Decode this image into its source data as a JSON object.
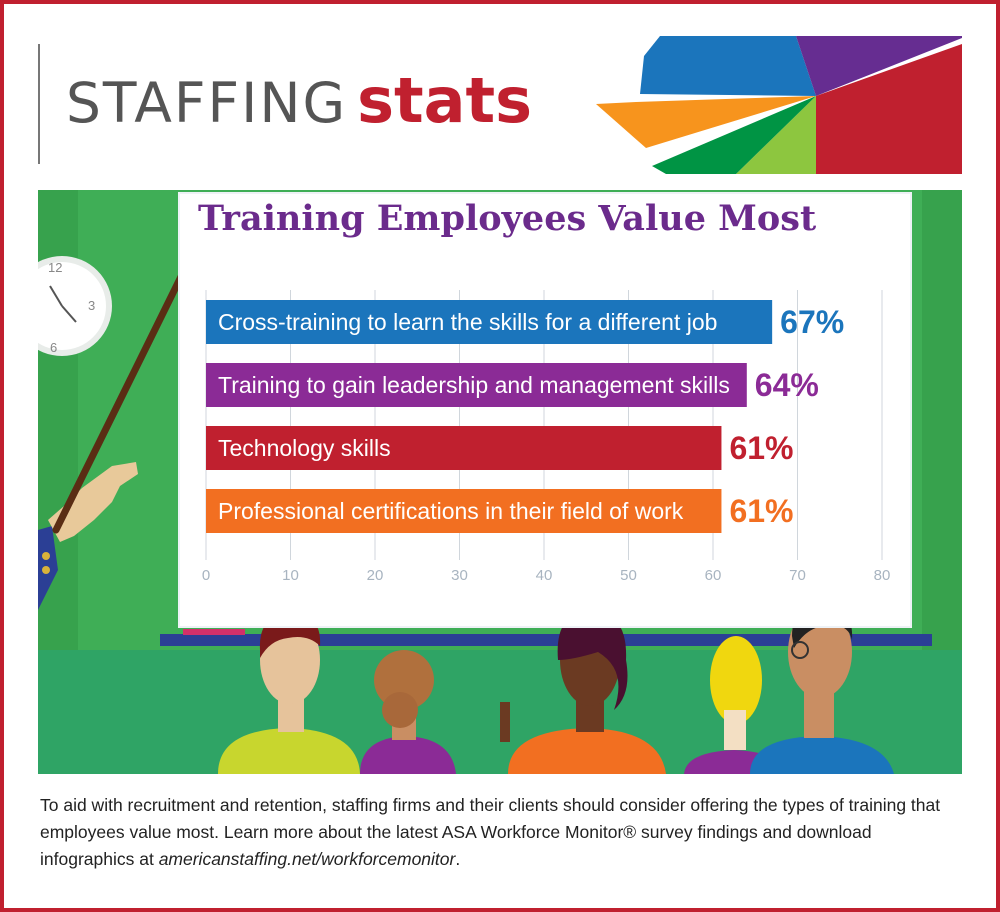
{
  "header": {
    "brand_light": "STAFFING",
    "brand_bold": "stats"
  },
  "logo_colors": [
    "#1b75bc",
    "#662d91",
    "#c0202f",
    "#8dc63f",
    "#009444",
    "#f7941d"
  ],
  "scene": {
    "clock": {
      "labels": [
        "12",
        "3",
        "6"
      ]
    },
    "colors": {
      "wall": "#3fae56",
      "floor": "#2fa465",
      "board_frame": "#2b3f95"
    }
  },
  "chart_data": {
    "type": "bar",
    "orientation": "horizontal",
    "title": "Training Employees Value Most",
    "categories": [
      "Cross-training to learn the skills for a different job",
      "Training to gain leadership and management skills",
      "Technology skills",
      "Professional certifications in their field of work"
    ],
    "values": [
      67,
      64,
      61,
      61
    ],
    "value_labels": [
      "67%",
      "64%",
      "61%",
      "61%"
    ],
    "colors": [
      "#1b75bc",
      "#8b2b96",
      "#c0202f",
      "#f26f21"
    ],
    "xlim": [
      0,
      80
    ],
    "xticks": [
      "0",
      "10",
      "20",
      "30",
      "40",
      "50",
      "60",
      "70",
      "80"
    ],
    "grid": true
  },
  "caption": {
    "text": "To aid with recruitment and retention, staffing firms and their clients should consider offering the types of training that employees value most. Learn more about the latest ASA Workforce Monitor® survey findings and download infographics at ",
    "url": "americanstaffing.net/workforcemonitor",
    "end": "."
  }
}
